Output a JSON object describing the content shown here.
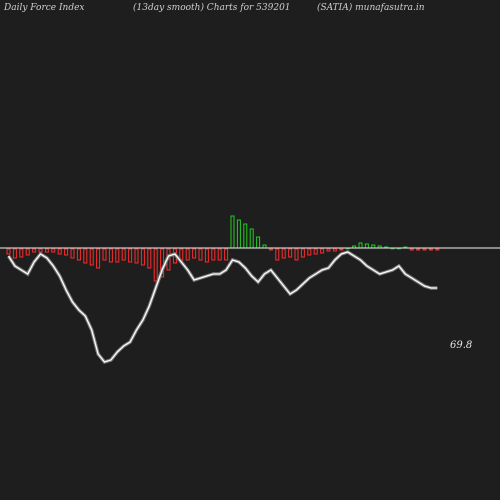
{
  "header": {
    "left": "Daily Force   Index",
    "middle": "(13day smooth) Charts for 539201",
    "right": "(SATIA) munafasutra.in"
  },
  "colors": {
    "background": "#1e1e1e",
    "positive_bar": "#22cc22",
    "negative_bar": "#ff2a2a",
    "baseline": "#cccccc",
    "line": "#ffffff"
  },
  "chart_data": {
    "type": "bar+line",
    "title": "Daily Force Index (13day smooth) Charts for 539201 (SATIA)",
    "xlabel": "",
    "ylabel": "",
    "grid": false,
    "bars": [
      -5,
      -9,
      -8,
      -6,
      -3,
      -3,
      -3,
      -3,
      -5,
      -6,
      -9,
      -11,
      -14,
      -16,
      -19,
      -11,
      -13,
      -13,
      -11,
      -13,
      -14,
      -16,
      -19,
      -32,
      -28,
      -21,
      -14,
      -11,
      -11,
      -9,
      -11,
      -13,
      -11,
      -11,
      -11,
      32,
      28,
      24,
      19,
      11,
      3,
      -1,
      -11,
      -9,
      -8,
      -11,
      -8,
      -6,
      -5,
      -4,
      -2,
      -2,
      -1,
      0,
      2,
      5,
      4,
      3,
      2,
      1,
      0,
      0,
      1,
      -1,
      -1,
      -1,
      -1,
      -1
    ],
    "force_line": [
      -3,
      -8,
      -10,
      -12,
      -6,
      -2,
      -4,
      -8,
      -13,
      -20,
      -26,
      -30,
      -33,
      -40,
      -52,
      -56,
      -55,
      -51,
      -48,
      -46,
      -40,
      -35,
      -28,
      -19,
      -10,
      -3,
      -2,
      -6,
      -10,
      -15,
      -14,
      -13,
      -12,
      -12,
      -10,
      -5,
      -6,
      -9,
      -13,
      -16,
      -12,
      -10,
      -14,
      -18,
      -22,
      -20,
      -17,
      -14,
      -12,
      -10,
      -9,
      -5,
      -2,
      -1,
      -3,
      -5,
      -8,
      -10,
      -12,
      -11,
      -10,
      -8,
      -12,
      -14,
      -16,
      -18,
      -19,
      -19
    ],
    "last_value_label": "69.8"
  }
}
